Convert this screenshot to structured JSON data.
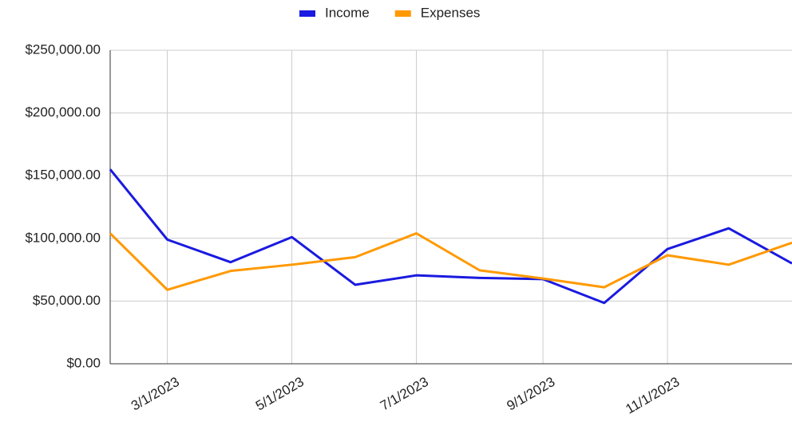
{
  "chart_data": {
    "type": "line",
    "x": [
      "2023-02-01",
      "2023-03-01",
      "2023-04-01",
      "2023-05-01",
      "2023-06-01",
      "2023-07-01",
      "2023-08-01",
      "2023-09-01",
      "2023-10-01",
      "2023-11-01",
      "2023-12-01",
      "2024-01-01"
    ],
    "series": [
      {
        "name": "Income",
        "color": "#1a1ae0",
        "values": [
          155000,
          99000,
          81000,
          101000,
          63000,
          70500,
          68500,
          67500,
          48500,
          91500,
          108000,
          80000
        ]
      },
      {
        "name": "Expenses",
        "color": "#ff9900",
        "values": [
          104000,
          59000,
          74000,
          79000,
          85000,
          104000,
          74500,
          68000,
          61000,
          86500,
          79000,
          96500
        ]
      }
    ],
    "xlim": [
      "2023-02-01",
      "2024-01-01"
    ],
    "xticks": [
      {
        "value": "2023-03-01",
        "label": "3/1/2023"
      },
      {
        "value": "2023-05-01",
        "label": "5/1/2023"
      },
      {
        "value": "2023-07-01",
        "label": "7/1/2023"
      },
      {
        "value": "2023-09-01",
        "label": "9/1/2023"
      },
      {
        "value": "2023-11-01",
        "label": "11/1/2023"
      }
    ],
    "ylim": [
      0,
      250000
    ],
    "yticks": [
      {
        "value": 0,
        "label": "$0.00"
      },
      {
        "value": 50000,
        "label": "$50,000.00"
      },
      {
        "value": 100000,
        "label": "$100,000.00"
      },
      {
        "value": 150000,
        "label": "$150,000.00"
      },
      {
        "value": 200000,
        "label": "$200,000.00"
      },
      {
        "value": 250000,
        "label": "$250,000.00"
      }
    ],
    "grid": true,
    "legend": "top"
  }
}
